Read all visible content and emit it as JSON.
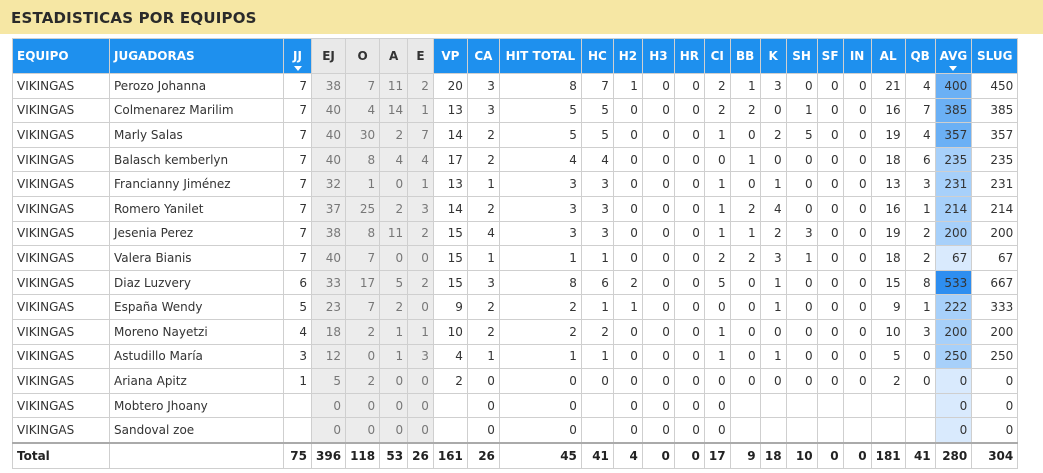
{
  "title": "ESTADISTICAS POR EQUIPOS",
  "columns": [
    "EQUIPO",
    "JUGADORAS",
    "JJ",
    "EJ",
    "O",
    "A",
    "E",
    "VP",
    "CA",
    "HIT TOTAL",
    "HC",
    "H2",
    "H3",
    "HR",
    "CI",
    "BB",
    "K",
    "SH",
    "SF",
    "IN",
    "AL",
    "QB",
    "AVG",
    "SLUG"
  ],
  "sorted_columns": [
    "JJ",
    "AVG"
  ],
  "rows": [
    [
      "VIKINGAS",
      "Perozo Johanna",
      "7",
      "38",
      "7",
      "11",
      "2",
      "20",
      "3",
      "8",
      "7",
      "1",
      "0",
      "0",
      "2",
      "1",
      "3",
      "0",
      "0",
      "0",
      "21",
      "4",
      "400",
      "450"
    ],
    [
      "VIKINGAS",
      "Colmenarez Marilim",
      "7",
      "40",
      "4",
      "14",
      "1",
      "13",
      "3",
      "5",
      "5",
      "0",
      "0",
      "0",
      "2",
      "2",
      "0",
      "1",
      "0",
      "0",
      "16",
      "7",
      "385",
      "385"
    ],
    [
      "VIKINGAS",
      "Marly Salas",
      "7",
      "40",
      "30",
      "2",
      "7",
      "14",
      "2",
      "5",
      "5",
      "0",
      "0",
      "0",
      "1",
      "0",
      "2",
      "5",
      "0",
      "0",
      "19",
      "4",
      "357",
      "357"
    ],
    [
      "VIKINGAS",
      "Balasch kemberlyn",
      "7",
      "40",
      "8",
      "4",
      "4",
      "17",
      "2",
      "4",
      "4",
      "0",
      "0",
      "0",
      "0",
      "1",
      "0",
      "0",
      "0",
      "0",
      "18",
      "6",
      "235",
      "235"
    ],
    [
      "VIKINGAS",
      "Francianny Jiménez",
      "7",
      "32",
      "1",
      "0",
      "1",
      "13",
      "1",
      "3",
      "3",
      "0",
      "0",
      "0",
      "1",
      "0",
      "1",
      "0",
      "0",
      "0",
      "13",
      "3",
      "231",
      "231"
    ],
    [
      "VIKINGAS",
      "Romero Yanilet",
      "7",
      "37",
      "25",
      "2",
      "3",
      "14",
      "2",
      "3",
      "3",
      "0",
      "0",
      "0",
      "1",
      "2",
      "4",
      "0",
      "0",
      "0",
      "16",
      "1",
      "214",
      "214"
    ],
    [
      "VIKINGAS",
      "Jesenia Perez",
      "7",
      "38",
      "8",
      "11",
      "2",
      "15",
      "4",
      "3",
      "3",
      "0",
      "0",
      "0",
      "1",
      "1",
      "2",
      "3",
      "0",
      "0",
      "19",
      "2",
      "200",
      "200"
    ],
    [
      "VIKINGAS",
      "Valera Bianis",
      "7",
      "40",
      "7",
      "0",
      "0",
      "15",
      "1",
      "1",
      "1",
      "0",
      "0",
      "0",
      "2",
      "2",
      "3",
      "1",
      "0",
      "0",
      "18",
      "2",
      "67",
      "67"
    ],
    [
      "VIKINGAS",
      "Diaz Luzvery",
      "6",
      "33",
      "17",
      "5",
      "2",
      "15",
      "3",
      "8",
      "6",
      "2",
      "0",
      "0",
      "5",
      "0",
      "1",
      "0",
      "0",
      "0",
      "15",
      "8",
      "533",
      "667"
    ],
    [
      "VIKINGAS",
      "España Wendy",
      "5",
      "23",
      "7",
      "2",
      "0",
      "9",
      "2",
      "2",
      "1",
      "1",
      "0",
      "0",
      "0",
      "0",
      "1",
      "0",
      "0",
      "0",
      "9",
      "1",
      "222",
      "333"
    ],
    [
      "VIKINGAS",
      "Moreno Nayetzi",
      "4",
      "18",
      "2",
      "1",
      "1",
      "10",
      "2",
      "2",
      "2",
      "0",
      "0",
      "0",
      "1",
      "0",
      "0",
      "0",
      "0",
      "0",
      "10",
      "3",
      "200",
      "200"
    ],
    [
      "VIKINGAS",
      "Astudillo María",
      "3",
      "12",
      "0",
      "1",
      "3",
      "4",
      "1",
      "1",
      "1",
      "0",
      "0",
      "0",
      "1",
      "0",
      "1",
      "0",
      "0",
      "0",
      "5",
      "0",
      "250",
      "250"
    ],
    [
      "VIKINGAS",
      "Ariana Apitz",
      "1",
      "5",
      "2",
      "0",
      "0",
      "2",
      "0",
      "0",
      "0",
      "0",
      "0",
      "0",
      "0",
      "0",
      "0",
      "0",
      "0",
      "0",
      "2",
      "0",
      "0",
      "0"
    ],
    [
      "VIKINGAS",
      "Mobtero Jhoany",
      "",
      "0",
      "0",
      "0",
      "0",
      "",
      "0",
      "0",
      "",
      "0",
      "0",
      "0",
      "0",
      "",
      "",
      "",
      "",
      "",
      "",
      "",
      "0",
      "0"
    ],
    [
      "VIKINGAS",
      "Sandoval zoe",
      "",
      "0",
      "0",
      "0",
      "0",
      "",
      "0",
      "0",
      "",
      "0",
      "0",
      "0",
      "0",
      "",
      "",
      "",
      "",
      "",
      "",
      "",
      "0",
      "0"
    ]
  ],
  "totals": [
    "Total",
    "",
    "75",
    "396",
    "118",
    "53",
    "26",
    "161",
    "26",
    "45",
    "41",
    "4",
    "0",
    "0",
    "17",
    "9",
    "18",
    "10",
    "0",
    "0",
    "181",
    "41",
    "280",
    "304"
  ],
  "avg_bar_colors": {
    "high": "#2e8ef0",
    "mid": "#6bb0f5",
    "low": "#a7d0fa",
    "faint": "#d9eafd"
  }
}
